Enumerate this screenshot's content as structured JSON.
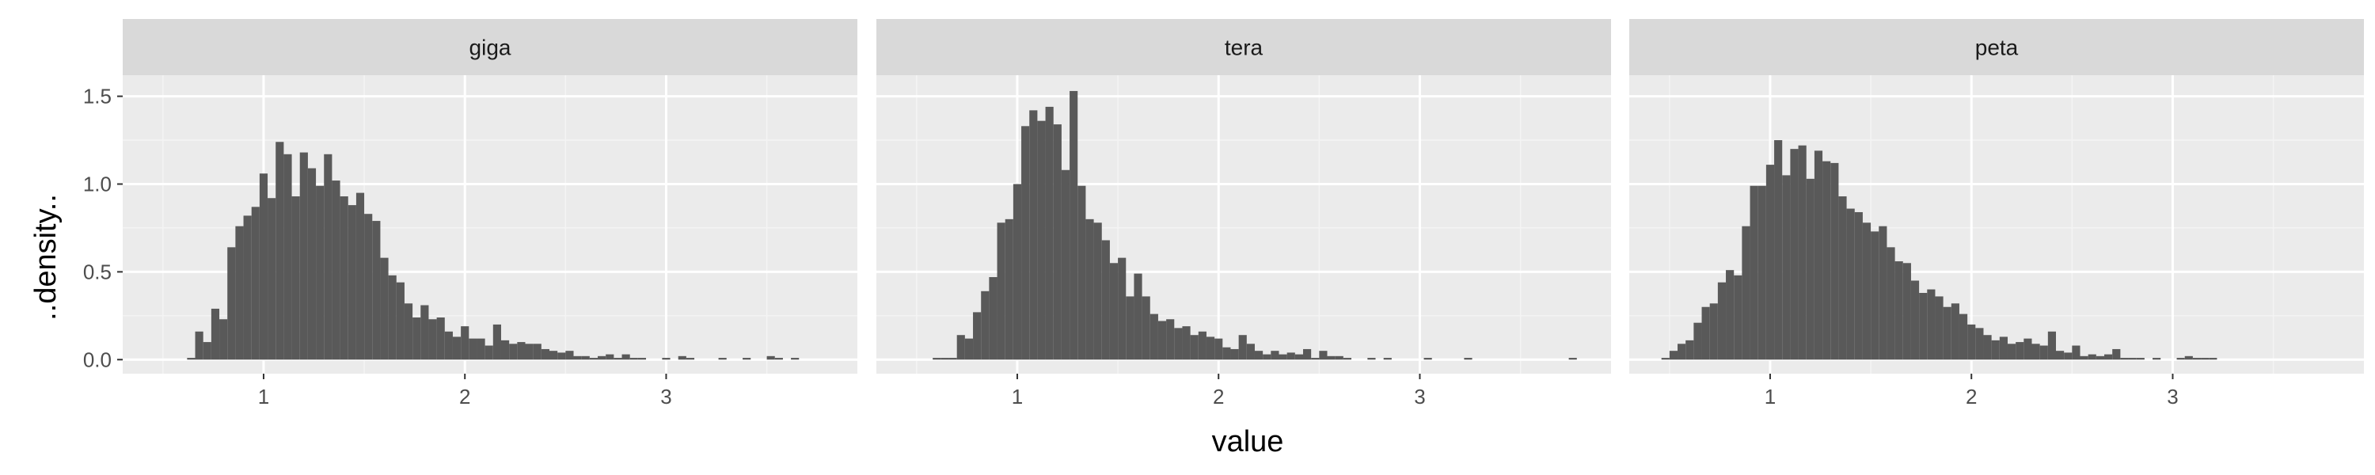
{
  "chart_data": {
    "type": "bar",
    "subtype": "histogram",
    "xlabel": "value",
    "ylabel": "..density..",
    "xlim": [
      0.3,
      3.95
    ],
    "ylim": [
      -0.08,
      1.62
    ],
    "x_ticks": [
      1,
      2,
      3
    ],
    "x_tick_labels": [
      "1",
      "2",
      "3"
    ],
    "y_ticks": [
      0,
      0.5,
      1,
      1.5
    ],
    "y_tick_labels": [
      "0.0",
      "0.5",
      "1.0",
      "1.5"
    ],
    "bin_width": 0.04,
    "grid": true,
    "legend": "none",
    "colors": {
      "bar": "#595959",
      "panel_background": "#ebebeb",
      "strip_background": "#d9d9d9",
      "grid_major": "#ffffff",
      "grid_minor": "#f4f4f4"
    },
    "panels": [
      {
        "label": "giga",
        "bins": [
          [
            0.62,
            0.01
          ],
          [
            0.66,
            0.16
          ],
          [
            0.7,
            0.1
          ],
          [
            0.74,
            0.29
          ],
          [
            0.78,
            0.23
          ],
          [
            0.82,
            0.64
          ],
          [
            0.86,
            0.76
          ],
          [
            0.9,
            0.82
          ],
          [
            0.94,
            0.87
          ],
          [
            0.98,
            1.06
          ],
          [
            1.02,
            0.92
          ],
          [
            1.06,
            1.24
          ],
          [
            1.1,
            1.17
          ],
          [
            1.14,
            0.93
          ],
          [
            1.18,
            1.18
          ],
          [
            1.22,
            1.09
          ],
          [
            1.26,
            0.99
          ],
          [
            1.3,
            1.17
          ],
          [
            1.34,
            1.02
          ],
          [
            1.38,
            0.93
          ],
          [
            1.42,
            0.88
          ],
          [
            1.46,
            0.95
          ],
          [
            1.5,
            0.83
          ],
          [
            1.54,
            0.79
          ],
          [
            1.58,
            0.58
          ],
          [
            1.62,
            0.48
          ],
          [
            1.66,
            0.44
          ],
          [
            1.7,
            0.32
          ],
          [
            1.74,
            0.24
          ],
          [
            1.78,
            0.31
          ],
          [
            1.82,
            0.23
          ],
          [
            1.86,
            0.24
          ],
          [
            1.9,
            0.16
          ],
          [
            1.94,
            0.13
          ],
          [
            1.98,
            0.19
          ],
          [
            2.02,
            0.12
          ],
          [
            2.06,
            0.12
          ],
          [
            2.1,
            0.08
          ],
          [
            2.14,
            0.2
          ],
          [
            2.18,
            0.11
          ],
          [
            2.22,
            0.09
          ],
          [
            2.26,
            0.1
          ],
          [
            2.3,
            0.09
          ],
          [
            2.34,
            0.09
          ],
          [
            2.38,
            0.06
          ],
          [
            2.42,
            0.05
          ],
          [
            2.46,
            0.04
          ],
          [
            2.5,
            0.05
          ],
          [
            2.54,
            0.02
          ],
          [
            2.58,
            0.02
          ],
          [
            2.62,
            0.01
          ],
          [
            2.66,
            0.02
          ],
          [
            2.7,
            0.03
          ],
          [
            2.74,
            0.01
          ],
          [
            2.78,
            0.03
          ],
          [
            2.82,
            0.01
          ],
          [
            2.86,
            0.01
          ],
          [
            2.98,
            0.01
          ],
          [
            3.06,
            0.02
          ],
          [
            3.1,
            0.01
          ],
          [
            3.26,
            0.01
          ],
          [
            3.38,
            0.01
          ],
          [
            3.5,
            0.02
          ],
          [
            3.54,
            0.01
          ],
          [
            3.62,
            0.01
          ]
        ]
      },
      {
        "label": "tera",
        "bins": [
          [
            0.58,
            0.01
          ],
          [
            0.62,
            0.01
          ],
          [
            0.66,
            0.01
          ],
          [
            0.7,
            0.14
          ],
          [
            0.74,
            0.12
          ],
          [
            0.78,
            0.27
          ],
          [
            0.82,
            0.39
          ],
          [
            0.86,
            0.47
          ],
          [
            0.9,
            0.78
          ],
          [
            0.94,
            0.8
          ],
          [
            0.98,
            1.0
          ],
          [
            1.02,
            1.33
          ],
          [
            1.06,
            1.42
          ],
          [
            1.1,
            1.36
          ],
          [
            1.14,
            1.44
          ],
          [
            1.18,
            1.34
          ],
          [
            1.22,
            1.08
          ],
          [
            1.26,
            1.53
          ],
          [
            1.3,
            0.99
          ],
          [
            1.34,
            0.8
          ],
          [
            1.38,
            0.78
          ],
          [
            1.42,
            0.68
          ],
          [
            1.46,
            0.55
          ],
          [
            1.5,
            0.58
          ],
          [
            1.54,
            0.36
          ],
          [
            1.58,
            0.49
          ],
          [
            1.62,
            0.36
          ],
          [
            1.66,
            0.26
          ],
          [
            1.7,
            0.22
          ],
          [
            1.74,
            0.23
          ],
          [
            1.78,
            0.18
          ],
          [
            1.82,
            0.19
          ],
          [
            1.86,
            0.14
          ],
          [
            1.9,
            0.16
          ],
          [
            1.94,
            0.13
          ],
          [
            1.98,
            0.12
          ],
          [
            2.02,
            0.07
          ],
          [
            2.06,
            0.06
          ],
          [
            2.1,
            0.14
          ],
          [
            2.14,
            0.09
          ],
          [
            2.18,
            0.05
          ],
          [
            2.22,
            0.03
          ],
          [
            2.26,
            0.05
          ],
          [
            2.3,
            0.03
          ],
          [
            2.34,
            0.04
          ],
          [
            2.38,
            0.03
          ],
          [
            2.42,
            0.06
          ],
          [
            2.46,
            0.01
          ],
          [
            2.5,
            0.05
          ],
          [
            2.54,
            0.02
          ],
          [
            2.58,
            0.02
          ],
          [
            2.62,
            0.01
          ],
          [
            2.74,
            0.01
          ],
          [
            2.82,
            0.01
          ],
          [
            3.02,
            0.01
          ],
          [
            3.22,
            0.01
          ],
          [
            3.74,
            0.01
          ]
        ]
      },
      {
        "label": "peta",
        "bins": [
          [
            0.46,
            0.01
          ],
          [
            0.5,
            0.05
          ],
          [
            0.54,
            0.09
          ],
          [
            0.58,
            0.11
          ],
          [
            0.62,
            0.21
          ],
          [
            0.66,
            0.3
          ],
          [
            0.7,
            0.32
          ],
          [
            0.74,
            0.44
          ],
          [
            0.78,
            0.51
          ],
          [
            0.82,
            0.48
          ],
          [
            0.86,
            0.76
          ],
          [
            0.9,
            0.99
          ],
          [
            0.94,
            0.99
          ],
          [
            0.98,
            1.11
          ],
          [
            1.02,
            1.25
          ],
          [
            1.06,
            1.05
          ],
          [
            1.1,
            1.2
          ],
          [
            1.14,
            1.22
          ],
          [
            1.18,
            1.03
          ],
          [
            1.22,
            1.19
          ],
          [
            1.26,
            1.13
          ],
          [
            1.3,
            1.12
          ],
          [
            1.34,
            0.93
          ],
          [
            1.38,
            0.86
          ],
          [
            1.42,
            0.84
          ],
          [
            1.46,
            0.78
          ],
          [
            1.5,
            0.73
          ],
          [
            1.54,
            0.76
          ],
          [
            1.58,
            0.64
          ],
          [
            1.62,
            0.56
          ],
          [
            1.66,
            0.55
          ],
          [
            1.7,
            0.45
          ],
          [
            1.74,
            0.38
          ],
          [
            1.78,
            0.4
          ],
          [
            1.82,
            0.36
          ],
          [
            1.86,
            0.3
          ],
          [
            1.9,
            0.32
          ],
          [
            1.94,
            0.26
          ],
          [
            1.98,
            0.2
          ],
          [
            2.02,
            0.18
          ],
          [
            2.06,
            0.14
          ],
          [
            2.1,
            0.11
          ],
          [
            2.14,
            0.13
          ],
          [
            2.18,
            0.09
          ],
          [
            2.22,
            0.1
          ],
          [
            2.26,
            0.12
          ],
          [
            2.3,
            0.09
          ],
          [
            2.34,
            0.08
          ],
          [
            2.38,
            0.16
          ],
          [
            2.42,
            0.05
          ],
          [
            2.46,
            0.04
          ],
          [
            2.5,
            0.08
          ],
          [
            2.54,
            0.02
          ],
          [
            2.58,
            0.03
          ],
          [
            2.62,
            0.02
          ],
          [
            2.66,
            0.03
          ],
          [
            2.7,
            0.06
          ],
          [
            2.74,
            0.01
          ],
          [
            2.78,
            0.01
          ],
          [
            2.82,
            0.01
          ],
          [
            2.9,
            0.01
          ],
          [
            3.02,
            0.01
          ],
          [
            3.06,
            0.02
          ],
          [
            3.1,
            0.01
          ],
          [
            3.14,
            0.01
          ],
          [
            3.18,
            0.01
          ]
        ]
      }
    ]
  }
}
